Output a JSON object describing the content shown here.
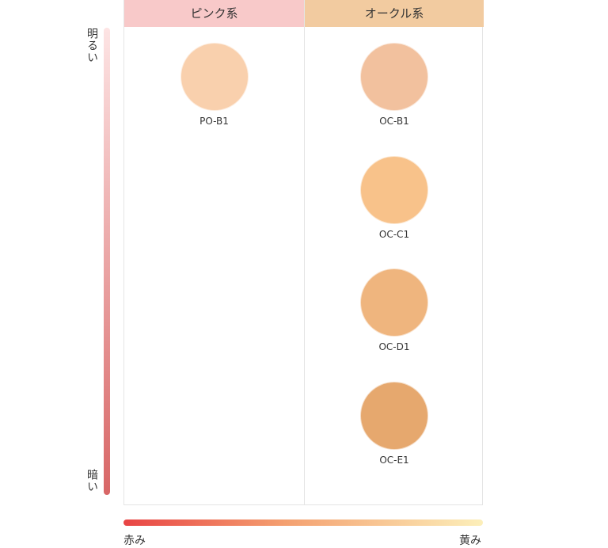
{
  "columns": [
    {
      "title": "ピンク系",
      "header_color": "#f8c9c9",
      "swatches": [
        {
          "label": "PO-B1",
          "color": "#f9d0ad"
        }
      ]
    },
    {
      "title": "オークル系",
      "header_color": "#f2cba0",
      "swatches": [
        {
          "label": "OC-B1",
          "color": "#f2c19e"
        },
        {
          "label": "OC-C1",
          "color": "#f8c28a"
        },
        {
          "label": "OC-D1",
          "color": "#efb57e"
        },
        {
          "label": "OC-E1",
          "color": "#e6a86e"
        }
      ]
    }
  ],
  "axes": {
    "vertical": {
      "top": "明るい",
      "bottom": "暗い"
    },
    "horizontal": {
      "left": "赤み",
      "right": "黄み"
    }
  }
}
